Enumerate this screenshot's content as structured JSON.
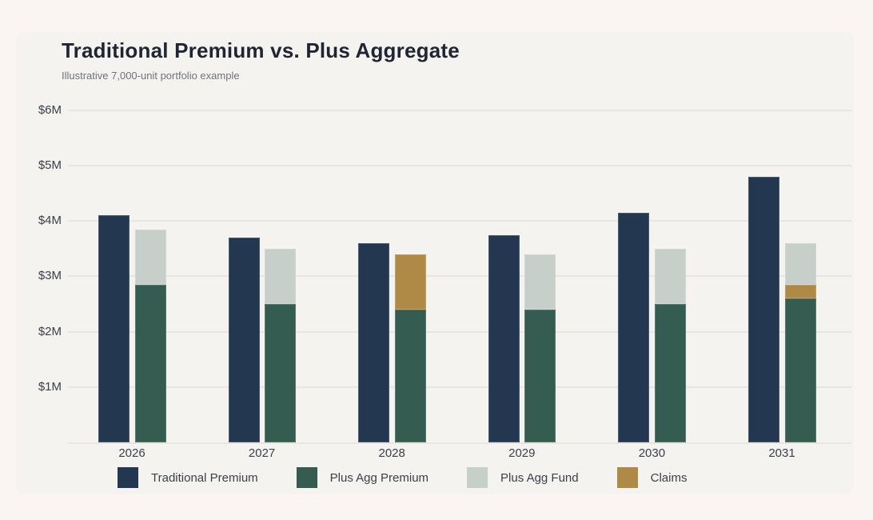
{
  "page": {
    "background_color": "#faf5f2",
    "panel_color": "#f4f3f0",
    "gridline_color": "#e9e5e0"
  },
  "header": {
    "title": "Traditional Premium vs. Plus Aggregate",
    "subtitle": "Illustrative 7,000-unit portfolio example"
  },
  "chart_data": {
    "type": "bar",
    "title": "Traditional Premium vs. Plus Aggregate",
    "subtitle": "Illustrative 7,000-unit portfolio example",
    "categories": [
      "2026",
      "2027",
      "2028",
      "2029",
      "2030",
      "2031"
    ],
    "series": [
      {
        "name": "Traditional Premium",
        "role": "standalone-bar",
        "color": "#233750",
        "values": [
          4.1,
          3.7,
          3.6,
          3.75,
          4.15,
          4.8
        ]
      },
      {
        "name": "Plus Agg Premium",
        "role": "stack-bottom",
        "color": "#355c51",
        "values": [
          2.85,
          2.5,
          2.4,
          2.4,
          2.5,
          2.6
        ]
      },
      {
        "name": "Claims",
        "role": "stack-middle",
        "color": "#af8a46",
        "values": [
          0,
          0,
          1.0,
          0,
          0,
          0.25
        ]
      },
      {
        "name": "Plus Agg Fund",
        "role": "stack-top",
        "color": "#c7cfca",
        "values": [
          1.0,
          1.0,
          0,
          1.0,
          1.0,
          0.75
        ]
      }
    ],
    "xlabel": "",
    "ylabel": "",
    "ylim": [
      0,
      6
    ],
    "y_ticks": [
      {
        "value": 1,
        "label": "$1M"
      },
      {
        "value": 2,
        "label": "$2M"
      },
      {
        "value": 3,
        "label": "$3M"
      },
      {
        "value": 4,
        "label": "$4M"
      },
      {
        "value": 5,
        "label": "$5M"
      },
      {
        "value": 6,
        "label": "$6M"
      }
    ],
    "grid": "horizontal",
    "legend_position": "bottom"
  },
  "legend": {
    "items": [
      {
        "label": "Traditional Premium",
        "color": "#233750"
      },
      {
        "label": "Plus Agg Premium",
        "color": "#355c51"
      },
      {
        "label": "Plus Agg Fund",
        "color": "#c7cfca"
      },
      {
        "label": "Claims",
        "color": "#af8a46"
      }
    ]
  }
}
